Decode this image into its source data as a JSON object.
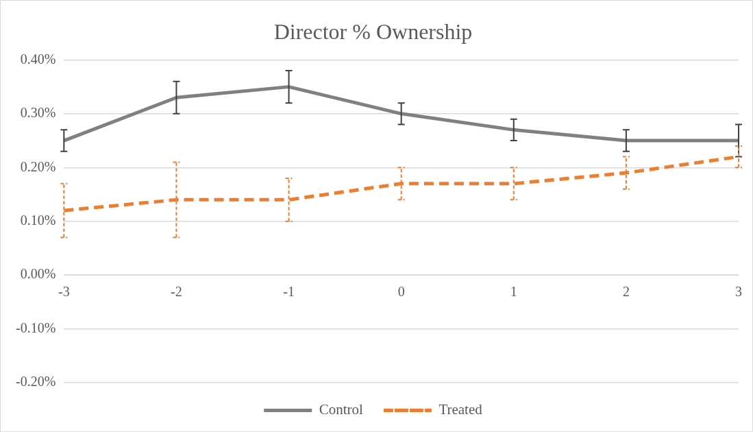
{
  "chart_data": {
    "type": "line",
    "title": "Director % Ownership",
    "categories": [
      "-3",
      "-2",
      "-1",
      "0",
      "1",
      "2",
      "3"
    ],
    "series": [
      {
        "name": "Control",
        "color": "#808080",
        "line_style": "solid",
        "values": [
          0.25,
          0.33,
          0.35,
          0.3,
          0.27,
          0.25,
          0.25
        ],
        "errors": [
          [
            0.23,
            0.27
          ],
          [
            0.3,
            0.36
          ],
          [
            0.32,
            0.38
          ],
          [
            0.28,
            0.32
          ],
          [
            0.25,
            0.29
          ],
          [
            0.23,
            0.27
          ],
          [
            0.22,
            0.28
          ]
        ]
      },
      {
        "name": "Treated",
        "color": "#ed7d31",
        "line_style": "dashed",
        "values": [
          0.12,
          0.14,
          0.14,
          0.17,
          0.17,
          0.19,
          0.22
        ],
        "errors": [
          [
            0.07,
            0.17
          ],
          [
            0.07,
            0.21
          ],
          [
            0.1,
            0.18
          ],
          [
            0.14,
            0.2
          ],
          [
            0.14,
            0.2
          ],
          [
            0.16,
            0.22
          ],
          [
            0.2,
            0.24
          ]
        ]
      }
    ],
    "ylim": [
      -0.2,
      0.4
    ],
    "yticks": [
      {
        "value": -0.2,
        "label": "-0.20%"
      },
      {
        "value": -0.1,
        "label": "-0.10%"
      },
      {
        "value": 0,
        "label": "0.00%"
      },
      {
        "value": 0.1,
        "label": "0.10%"
      },
      {
        "value": 0.2,
        "label": "0.20%"
      },
      {
        "value": 0.3,
        "label": "0.30%"
      },
      {
        "value": 0.4,
        "label": "0.40%"
      }
    ],
    "grid": "y",
    "legend": "bottom",
    "marker": "none"
  }
}
